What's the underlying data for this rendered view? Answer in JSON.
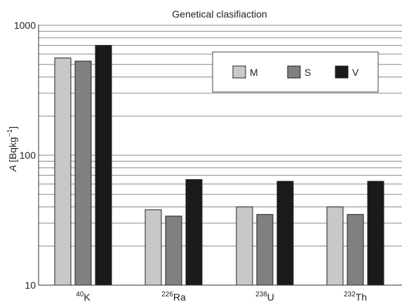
{
  "chart_data": {
    "type": "bar",
    "title": "Genetical clasifiaction",
    "ylabel_italic": "A",
    "ylabel_unit": " [Bqkg",
    "ylabel_exp": "−1",
    "ylabel_close": "]",
    "yscale": "log",
    "ylim": [
      10,
      1000
    ],
    "yticks": [
      "10",
      "100",
      "1000"
    ],
    "grid": "horizontal",
    "legend_position": "top-right",
    "categories": [
      {
        "mass": "40",
        "symbol": "K"
      },
      {
        "mass": "226",
        "symbol": "Ra"
      },
      {
        "mass": "238",
        "symbol": "U"
      },
      {
        "mass": "232",
        "symbol": "Th"
      }
    ],
    "series": [
      {
        "name": "M",
        "color": "#c8c8c8",
        "values": [
          560,
          38,
          40,
          40
        ]
      },
      {
        "name": "S",
        "color": "#808080",
        "values": [
          530,
          34,
          35,
          35
        ]
      },
      {
        "name": "V",
        "color": "#1a1a1a",
        "values": [
          700,
          65,
          63,
          63
        ]
      }
    ]
  }
}
